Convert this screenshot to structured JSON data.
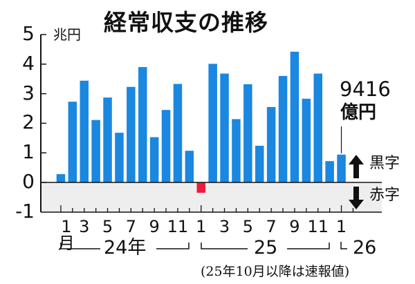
{
  "title": "経常収支の推移",
  "unit_label": "兆円",
  "y_ticks": [
    "5",
    "4",
    "3",
    "2",
    "1",
    "0",
    "-1"
  ],
  "x_ticks_24": [
    "1月",
    "3",
    "5",
    "7",
    "9",
    "11"
  ],
  "x_ticks_25": [
    "1",
    "3",
    "5",
    "7",
    "9",
    "11"
  ],
  "x_ticks_26": [
    "1"
  ],
  "year_labels": {
    "y24": "24年",
    "y25": "25",
    "y26": "26"
  },
  "last_value_label": {
    "value": "9416",
    "unit": "億円"
  },
  "legend": {
    "surplus": "黒字",
    "deficit": "赤字"
  },
  "note": "(25年10月以降は速報値)",
  "colors": {
    "positive": "#1a87e0",
    "negative": "#ee1c3c",
    "negative_area": "#eeeeee",
    "axis": "#111111"
  },
  "chart_data": {
    "type": "bar",
    "title": "経常収支の推移",
    "xlabel": "",
    "ylabel": "兆円",
    "ylim": [
      -1,
      5
    ],
    "grid": false,
    "categories": [
      "24/1",
      "24/2",
      "24/3",
      "24/4",
      "24/5",
      "24/6",
      "24/7",
      "24/8",
      "24/9",
      "24/10",
      "24/11",
      "24/12",
      "25/1",
      "25/2",
      "25/3",
      "25/4",
      "25/5",
      "25/6",
      "25/7",
      "25/8",
      "25/9",
      "25/10",
      "25/11",
      "25/12",
      "26/1"
    ],
    "values": [
      0.28,
      2.73,
      3.44,
      2.11,
      2.87,
      1.68,
      3.23,
      3.9,
      1.53,
      2.45,
      3.33,
      1.07,
      -0.35,
      4.01,
      3.68,
      2.14,
      3.32,
      1.24,
      2.55,
      3.6,
      4.42,
      2.83,
      3.68,
      0.72,
      0.94
    ],
    "annotations": [
      "9416億円 (26年1月)",
      "黒字 ↑",
      "赤字 ↓",
      "(25年10月以降は速報値)"
    ]
  }
}
